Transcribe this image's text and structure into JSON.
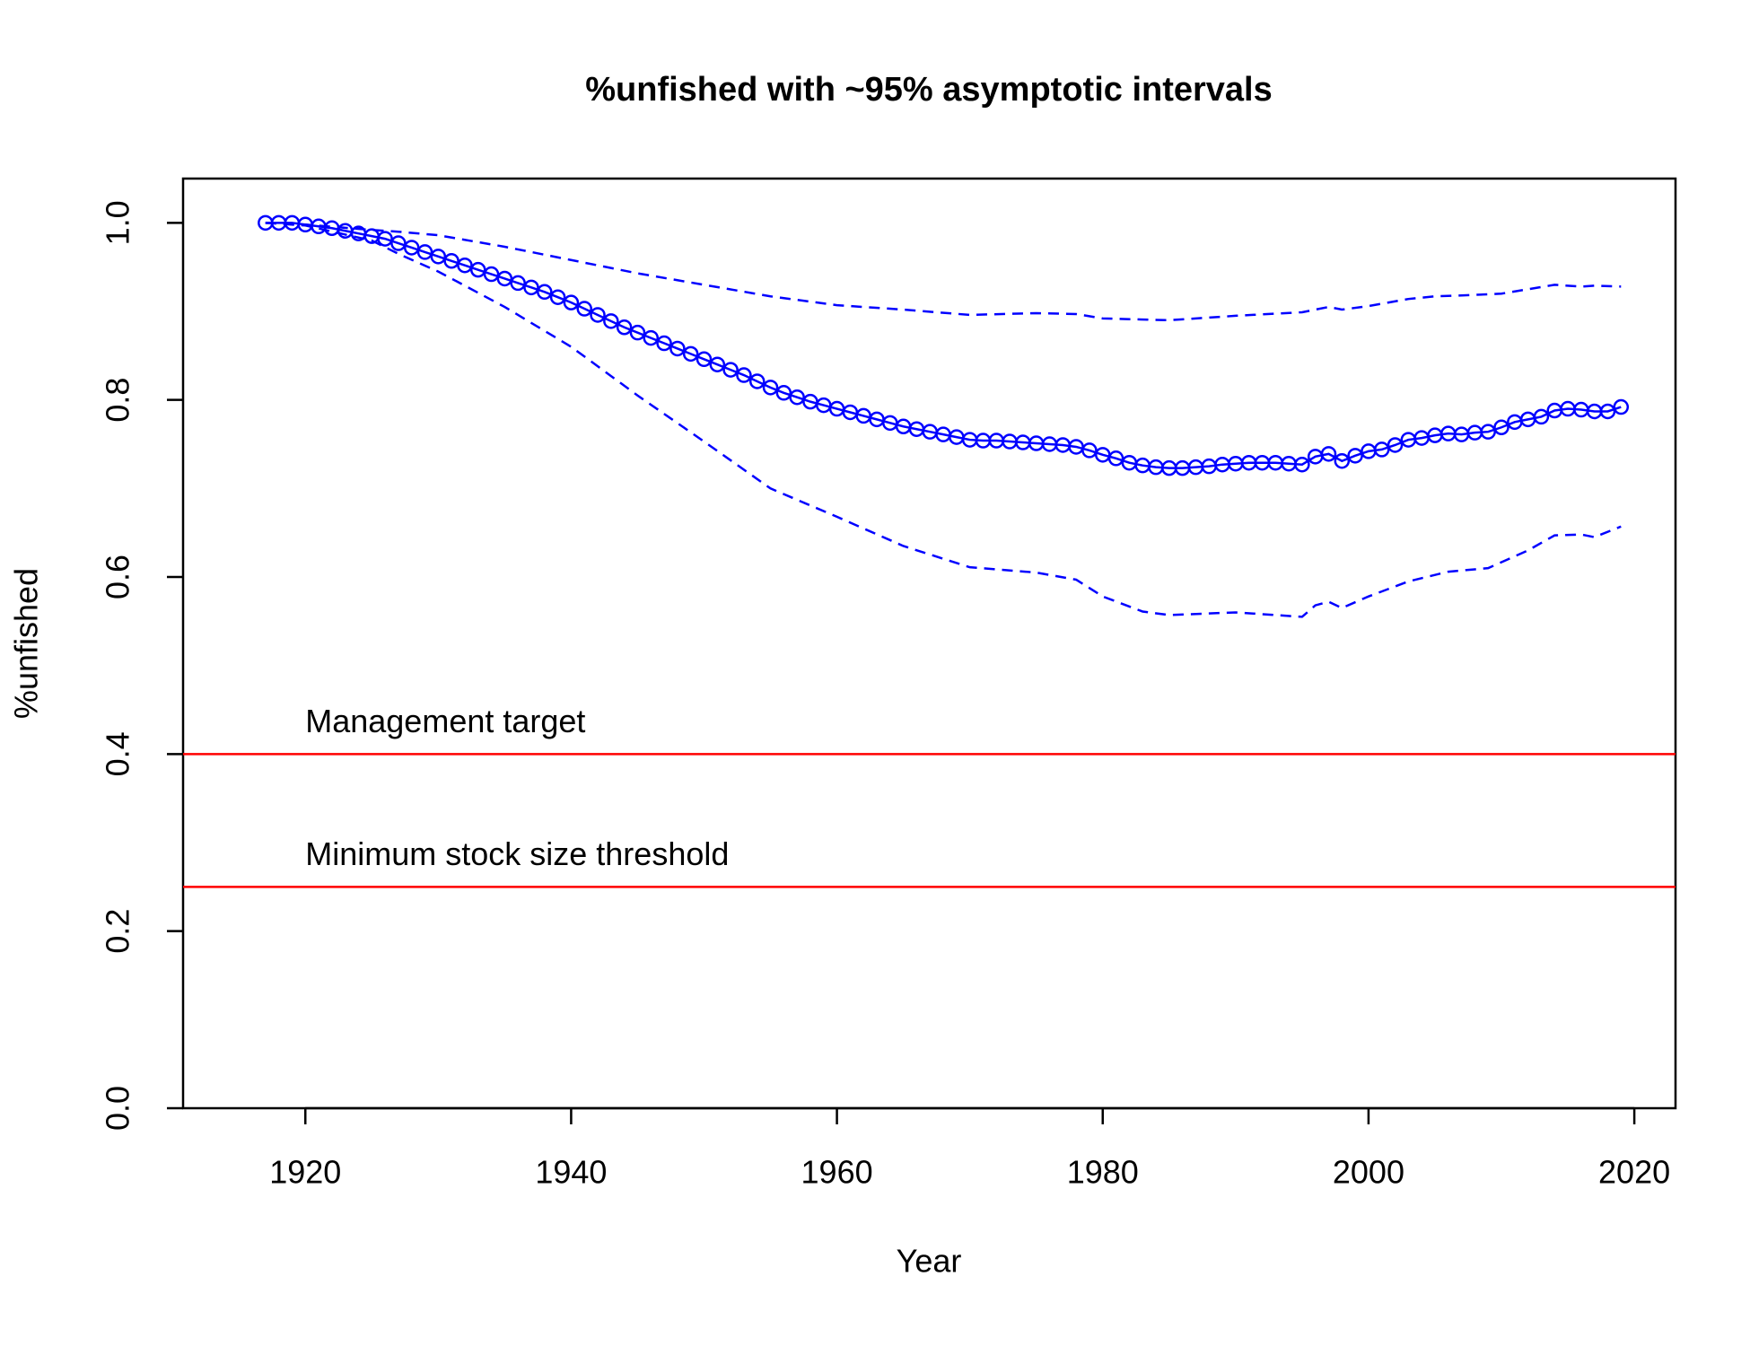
{
  "chart_data": {
    "type": "line",
    "title": "%unfished with ~95% asymptotic intervals",
    "xlabel": "Year",
    "ylabel": "%unfished",
    "xlim": [
      1910.8,
      2023.1
    ],
    "ylim": [
      0,
      1.05
    ],
    "xticks": [
      1920,
      1940,
      1960,
      1980,
      2000,
      2020
    ],
    "yticks": [
      {
        "value": 0,
        "label": "0.0"
      },
      0.2,
      0.4,
      0.6,
      0.8,
      {
        "value": 1,
        "label": "1.0"
      }
    ],
    "series": [
      {
        "color": "#0000ff",
        "style": "points-line",
        "x": [
          1917,
          1918,
          1919,
          1920,
          1921,
          1922,
          1923,
          1924,
          1925,
          1926,
          1927,
          1928,
          1929,
          1930,
          1931,
          1932,
          1933,
          1934,
          1935,
          1936,
          1937,
          1938,
          1939,
          1940,
          1941,
          1942,
          1943,
          1944,
          1945,
          1946,
          1947,
          1948,
          1949,
          1950,
          1951,
          1952,
          1953,
          1954,
          1955,
          1956,
          1957,
          1958,
          1959,
          1960,
          1961,
          1962,
          1963,
          1964,
          1965,
          1966,
          1967,
          1968,
          1969,
          1970,
          1971,
          1972,
          1973,
          1974,
          1975,
          1976,
          1977,
          1978,
          1979,
          1980,
          1981,
          1982,
          1983,
          1984,
          1985,
          1986,
          1987,
          1988,
          1989,
          1990,
          1991,
          1992,
          1993,
          1994,
          1995,
          1996,
          1997,
          1998,
          1999,
          2000,
          2001,
          2002,
          2003,
          2004,
          2005,
          2006,
          2007,
          2008,
          2009,
          2010,
          2011,
          2012,
          2013,
          2014,
          2015,
          2016,
          2017,
          2018,
          2019
        ],
        "values": [
          1.0,
          1.0,
          1.0,
          0.998,
          0.996,
          0.994,
          0.991,
          0.988,
          0.985,
          0.982,
          0.977,
          0.972,
          0.967,
          0.962,
          0.957,
          0.952,
          0.947,
          0.942,
          0.937,
          0.932,
          0.927,
          0.922,
          0.916,
          0.91,
          0.903,
          0.896,
          0.889,
          0.882,
          0.876,
          0.87,
          0.864,
          0.858,
          0.852,
          0.846,
          0.84,
          0.834,
          0.828,
          0.821,
          0.814,
          0.808,
          0.803,
          0.798,
          0.794,
          0.79,
          0.786,
          0.782,
          0.778,
          0.774,
          0.77,
          0.767,
          0.764,
          0.761,
          0.758,
          0.755,
          0.754,
          0.754,
          0.753,
          0.752,
          0.751,
          0.75,
          0.749,
          0.747,
          0.743,
          0.738,
          0.734,
          0.729,
          0.726,
          0.724,
          0.723,
          0.723,
          0.724,
          0.725,
          0.727,
          0.728,
          0.729,
          0.729,
          0.729,
          0.728,
          0.727,
          0.736,
          0.739,
          0.731,
          0.737,
          0.742,
          0.744,
          0.749,
          0.755,
          0.757,
          0.76,
          0.762,
          0.761,
          0.763,
          0.764,
          0.769,
          0.775,
          0.778,
          0.781,
          0.788,
          0.79,
          0.789,
          0.787,
          0.787,
          0.792
        ]
      },
      {
        "color": "#0000ff",
        "style": "dashed",
        "x": [
          1917,
          1920,
          1925,
          1927,
          1930,
          1935,
          1940,
          1945,
          1950,
          1955,
          1960,
          1965,
          1970,
          1975,
          1978,
          1980,
          1985,
          1990,
          1995,
          1997,
          1998,
          2000,
          2003,
          2005,
          2007,
          2010,
          2012,
          2014,
          2016,
          2017,
          2019
        ],
        "values": [
          1.0,
          0.998,
          0.992,
          0.99,
          0.986,
          0.973,
          0.958,
          0.943,
          0.93,
          0.917,
          0.907,
          0.902,
          0.896,
          0.898,
          0.897,
          0.892,
          0.89,
          0.895,
          0.899,
          0.905,
          0.902,
          0.906,
          0.914,
          0.917,
          0.918,
          0.92,
          0.925,
          0.93,
          0.928,
          0.929,
          0.928
        ]
      },
      {
        "color": "#0000ff",
        "style": "dashed",
        "x": [
          1917,
          1920,
          1925,
          1927,
          1930,
          1935,
          1940,
          1945,
          1950,
          1955,
          1960,
          1965,
          1970,
          1975,
          1978,
          1980,
          1983,
          1985,
          1990,
          1995,
          1996,
          1997,
          1998,
          2000,
          2003,
          2006,
          2009,
          2012,
          2014,
          2016,
          2017,
          2019
        ],
        "values": [
          1.0,
          0.997,
          0.98,
          0.965,
          0.945,
          0.905,
          0.86,
          0.805,
          0.753,
          0.7,
          0.668,
          0.635,
          0.611,
          0.605,
          0.597,
          0.578,
          0.561,
          0.557,
          0.56,
          0.555,
          0.568,
          0.572,
          0.565,
          0.578,
          0.595,
          0.606,
          0.61,
          0.63,
          0.647,
          0.648,
          0.645,
          0.657
        ]
      }
    ],
    "reference_lines": [
      {
        "value": 0.4,
        "label": "Management target",
        "color": "#ff0000"
      },
      {
        "value": 0.25,
        "label": "Minimum stock size threshold",
        "color": "#ff0000"
      }
    ]
  }
}
